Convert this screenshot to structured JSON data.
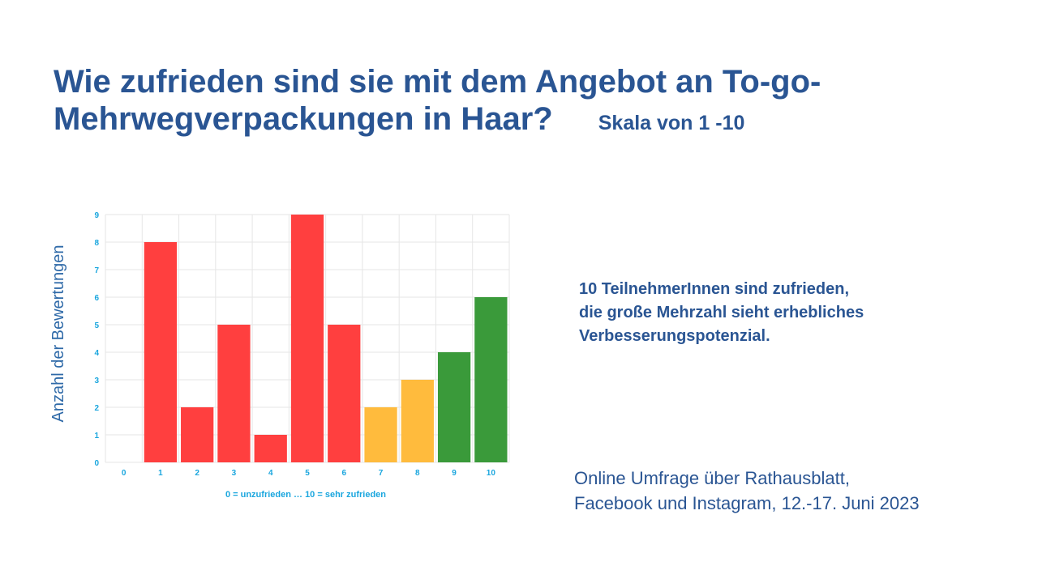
{
  "slide": {
    "title": "Wie zufrieden sind sie mit dem Angebot an To-go-Mehrwegverpackungen in Haar?",
    "subtitle": "Skala von 1 -10",
    "summary_lines": [
      "10 TeilnehmerInnen sind zufrieden,",
      "die große Mehrzahl sieht erhebliches",
      "Verbesserungspotenzial."
    ],
    "source_lines": [
      "Online Umfrage über Rathausblatt,",
      "Facebook und Instagram, 12.-17. Juni 2023"
    ]
  },
  "colors": {
    "text": "#2a5593",
    "axis_text": "#1aa6de",
    "unsatisfied": "#ff3f3f",
    "neutral": "#ffbb3d",
    "satisfied": "#3a9a3a",
    "grid": "#e6e6e6"
  },
  "chart_data": {
    "type": "bar",
    "categories": [
      "0",
      "1",
      "2",
      "3",
      "4",
      "5",
      "6",
      "7",
      "8",
      "9",
      "10"
    ],
    "values": [
      0,
      8,
      2,
      5,
      1,
      9,
      5,
      2,
      3,
      4,
      6
    ],
    "bar_colors": [
      "#ff3f3f",
      "#ff3f3f",
      "#ff3f3f",
      "#ff3f3f",
      "#ff3f3f",
      "#ff3f3f",
      "#ff3f3f",
      "#ffbb3d",
      "#ffbb3d",
      "#3a9a3a",
      "#3a9a3a"
    ],
    "title": "",
    "xlabel": "0 = unzufrieden … 10 = sehr zufrieden",
    "ylabel": "Anzahl der Bewertungen",
    "ylim": [
      0,
      9
    ],
    "yticks": [
      0,
      1,
      2,
      3,
      4,
      5,
      6,
      7,
      8,
      9
    ],
    "grid": true,
    "legend": "none"
  }
}
